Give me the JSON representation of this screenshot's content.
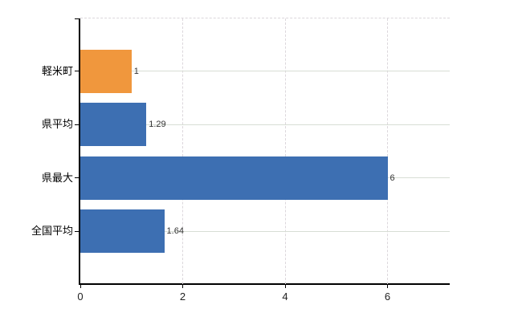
{
  "chart_data": {
    "type": "bar",
    "orientation": "horizontal",
    "title": "",
    "xlabel": "",
    "ylabel": "",
    "categories": [
      "軽米町",
      "県平均",
      "県最大",
      "全国平均"
    ],
    "values": [
      1,
      1.29,
      6,
      1.64
    ],
    "value_labels": [
      "1",
      "1.29",
      "6",
      "1.64"
    ],
    "bar_colors": [
      "#f0973d",
      "#3d6fb2",
      "#3d6fb2",
      "#3d6fb2"
    ],
    "xlim": [
      0,
      7.2
    ],
    "xticks": [
      0,
      2,
      4,
      6
    ],
    "xtick_labels": [
      "0",
      "2",
      "4",
      "6"
    ],
    "grid": "on",
    "legend": "none",
    "style": {
      "highlight_color": "#f0973d",
      "series_color": "#3d6fb2",
      "axis_color": "#000000",
      "h_gridline_color": "#d8ded5",
      "v_gridline_color": "#dcd7dc",
      "background_color": "#ffffff",
      "label_color": "#000000",
      "value_label_color": "#333333"
    }
  }
}
